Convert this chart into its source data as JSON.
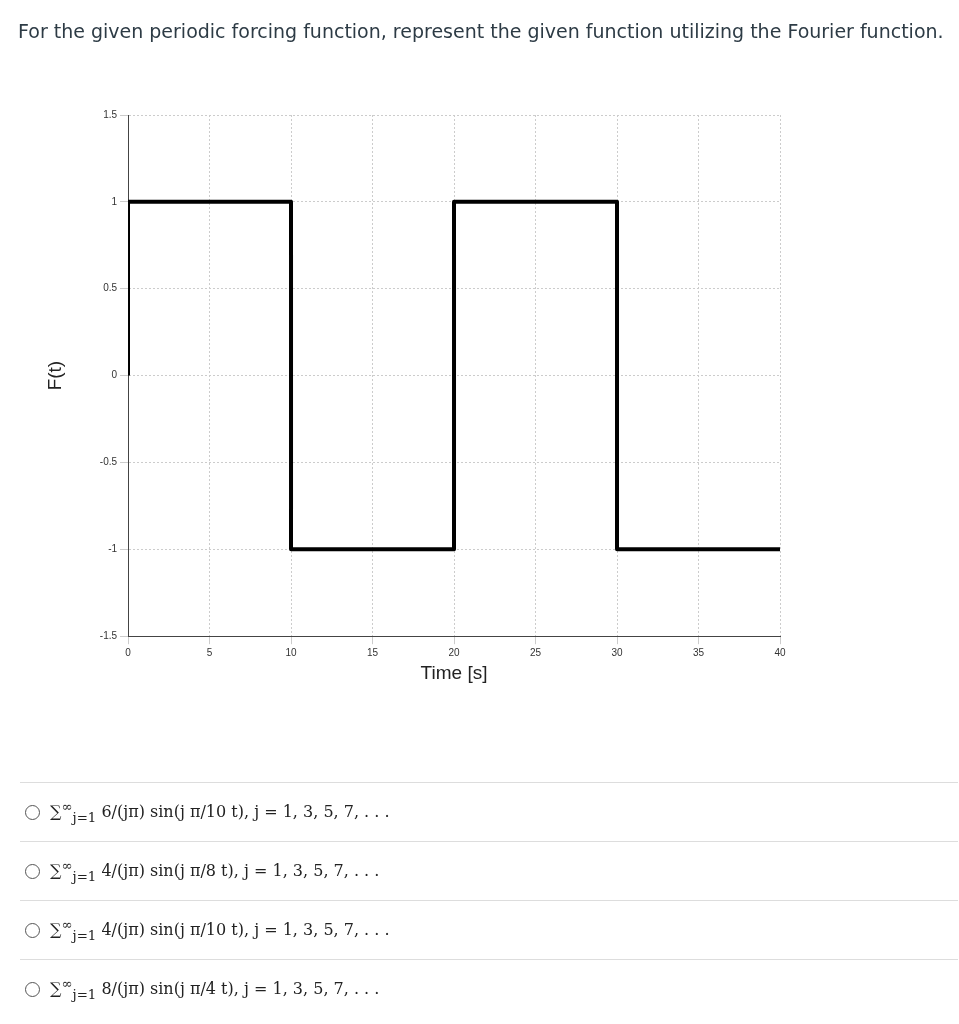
{
  "chart_data": {
    "type": "line",
    "title": "For the given periodic forcing function, represent the given function utilizing the Fourier function.",
    "xlabel": "Time [s]",
    "ylabel": "F(t)",
    "series": [
      {
        "color": "#000000",
        "x": [
          0,
          0,
          10,
          10,
          20,
          20,
          30,
          30,
          40
        ],
        "values": [
          0,
          1,
          1,
          -1,
          -1,
          1,
          1,
          -1,
          -1
        ]
      }
    ],
    "xlim": [
      0,
      40
    ],
    "xticks": [
      0,
      5,
      10,
      15,
      20,
      25,
      30,
      35,
      40
    ],
    "ylim": [
      -1.5,
      1.5
    ],
    "yticks": [
      -1.5,
      -1,
      -0.5,
      0,
      0.5,
      1,
      1.5
    ],
    "grid": true,
    "legend": false,
    "marker": "none",
    "line_style": "solid",
    "annotations": [
      "∑$^{∞}$$_{j=1}$ 6/(jπ) sin(j π/10 t),  j = 1, 3, 5, 7, . . .",
      "∑$^{∞}$$_{j=1}$ 4/(jπ) sin(j π/8 t),  j = 1, 3, 5, 7, . . .",
      "∑$^{∞}$$_{j=1}$ 4/(jπ) sin(j π/10 t),  j = 1, 3, 5, 7, . . .",
      "∑$^{∞}$$_{j=1}$ 8/(jπ) sin(j π/4 t),  j = 1, 3, 5, 7, . . ."
    ]
  }
}
